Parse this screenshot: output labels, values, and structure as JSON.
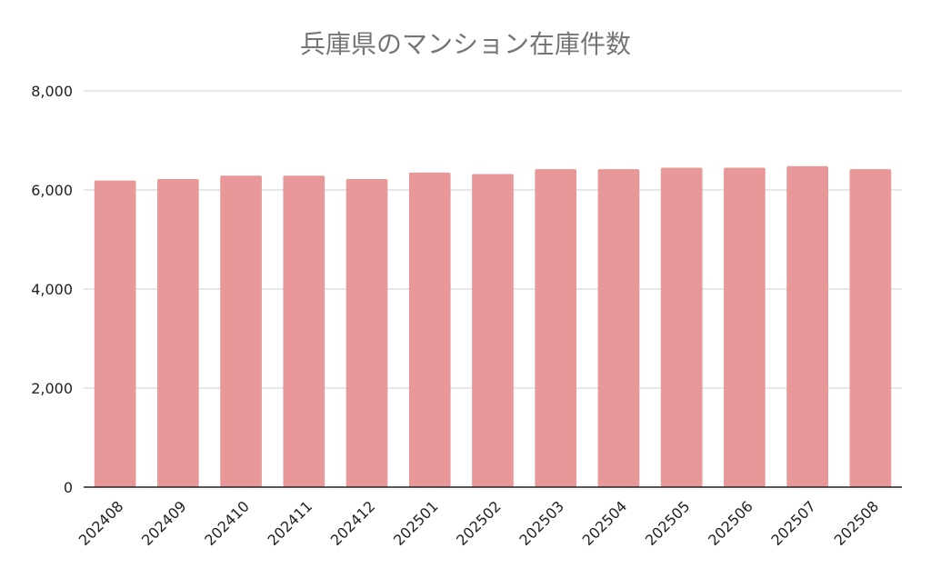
{
  "chart_data": {
    "type": "bar",
    "title": "兵庫県のマンション在庫件数",
    "xlabel": "",
    "ylabel": "",
    "categories": [
      "202408",
      "202409",
      "202410",
      "202411",
      "202412",
      "202501",
      "202502",
      "202503",
      "202504",
      "202505",
      "202506",
      "202507",
      "202508"
    ],
    "values": [
      6190,
      6220,
      6290,
      6290,
      6220,
      6350,
      6320,
      6420,
      6420,
      6450,
      6450,
      6480,
      6420
    ],
    "ylim": [
      0,
      8000
    ],
    "yticks": [
      0,
      2000,
      4000,
      6000,
      8000
    ],
    "ytick_labels": [
      "0",
      "2,000",
      "4,000",
      "6,000",
      "8,000"
    ],
    "grid": true,
    "legend": "none",
    "colors": {
      "bar": "#e89898",
      "grid": "#cfcfcf",
      "axis": "#222222",
      "title": "#757575"
    }
  }
}
